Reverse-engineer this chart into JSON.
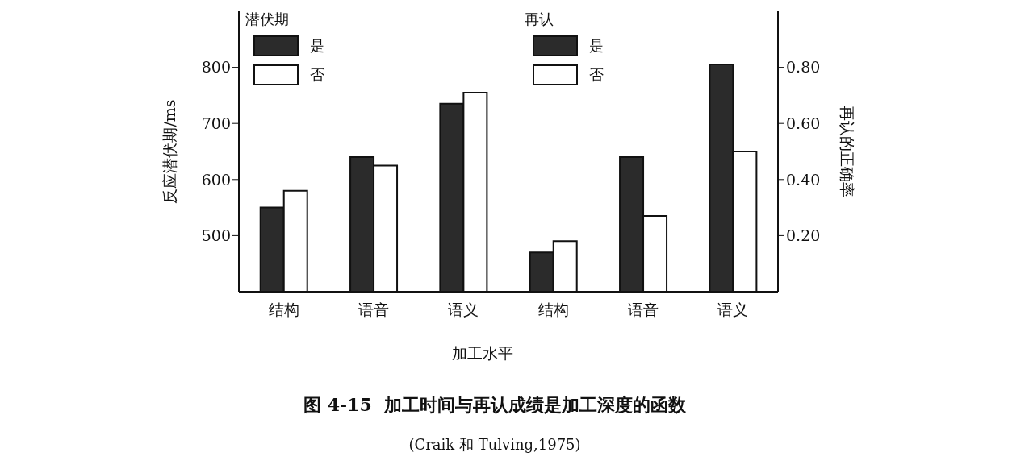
{
  "chart_data": [
    {
      "type": "bar",
      "title": "图 4-15  加工时间与再认成绩是加工深度的函数",
      "annotations": [
        "(Craik 和 Tulving,1975)"
      ],
      "xlabel": "加工水平",
      "ylabel": "反应潜伏期/ms",
      "legend_title": "潜伏期",
      "legend": "top left",
      "categories": [
        "结构",
        "语音",
        "语义"
      ],
      "series": [
        {
          "name": "是",
          "color": "#2b2b2b",
          "values": [
            550,
            640,
            735
          ]
        },
        {
          "name": "否",
          "color": "#ffffff",
          "values": [
            580,
            625,
            755
          ]
        }
      ],
      "ylim": [
        400,
        900
      ],
      "yticks": [
        500,
        600,
        700,
        800
      ]
    },
    {
      "type": "bar",
      "y2label": "再认的正确率",
      "legend_title": "再认",
      "legend": "top left",
      "categories": [
        "结构",
        "语音",
        "语义"
      ],
      "series": [
        {
          "name": "是",
          "color": "#2b2b2b",
          "axis": "y2",
          "values": [
            0.14,
            0.48,
            0.81
          ]
        },
        {
          "name": "否",
          "color": "#ffffff",
          "axis": "y2",
          "values": [
            0.18,
            0.27,
            0.5
          ]
        }
      ],
      "y2lim": [
        0,
        1.0
      ],
      "y2ticks": [
        {
          "value": 0.2,
          "label": "0.20"
        },
        {
          "value": 0.4,
          "label": "0.40"
        },
        {
          "value": 0.6,
          "label": "0.60"
        },
        {
          "value": 0.8,
          "label": "0.80"
        }
      ]
    }
  ]
}
